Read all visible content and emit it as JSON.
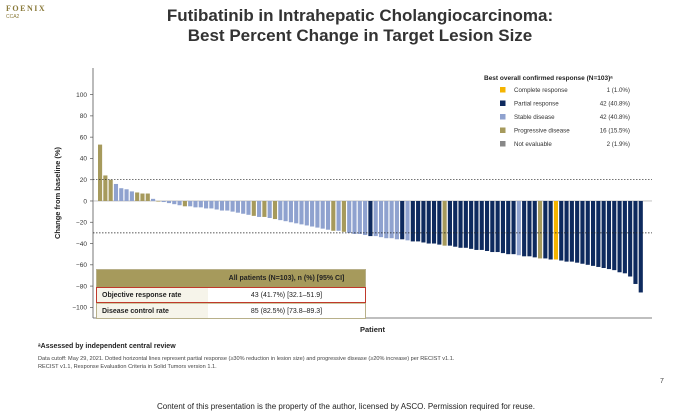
{
  "logo": {
    "line1": "FOENIX",
    "line2": "CCA2"
  },
  "title": {
    "line1": "Futibatinib in Intrahepatic Cholangiocarcinoma:",
    "line2": "Best Percent Change in Target Lesion Size"
  },
  "legend": {
    "title": "Best overall confirmed response (N=103)ᵃ",
    "items": [
      {
        "label": "Complete response",
        "value": "1 (1.0%)",
        "color": "#f5b400"
      },
      {
        "label": "Partial response",
        "value": "42 (40.8%)",
        "color": "#0e2a5e"
      },
      {
        "label": "Stable disease",
        "value": "42 (40.8%)",
        "color": "#8fa2cf"
      },
      {
        "label": "Progressive disease",
        "value": "16 (15.5%)",
        "color": "#a69a5c"
      },
      {
        "label": "Not evaluable",
        "value": "2 (1.9%)",
        "color": "#888888"
      }
    ]
  },
  "table": {
    "header": "All patients (N=103), n (%) [95% CI]",
    "rows": [
      {
        "label": "Objective response rate",
        "value": "43 (41.7%) [32.1–51.9]"
      },
      {
        "label": "Disease control rate",
        "value": "85 (82.5%) [73.8–89.3]"
      }
    ]
  },
  "chart_data": {
    "type": "bar",
    "xlabel": "Patient",
    "ylabel": "Change from baseline (%)",
    "ylim": [
      -110,
      125
    ],
    "yticks": [
      100,
      80,
      60,
      40,
      20,
      0,
      -20,
      -40,
      -60,
      -80,
      -100
    ],
    "ytick_labels": [
      "100",
      "80",
      "60",
      "40",
      "20",
      "0",
      "−20",
      "−40",
      "−60",
      "−80",
      "−100"
    ],
    "reference_lines": [
      20,
      -30
    ],
    "grid": false,
    "legend_position": "top-right",
    "colors": {
      "CR": "#f5b400",
      "PR": "#0e2a5e",
      "SD": "#8fa2cf",
      "PD": "#a69a5c",
      "NE": "#888888"
    },
    "values": [
      53,
      24,
      20,
      16,
      12,
      11,
      9,
      8,
      7,
      7,
      2,
      0,
      -1,
      -2,
      -3,
      -4,
      -5,
      -5,
      -6,
      -6,
      -7,
      -7,
      -8,
      -9,
      -9,
      -10,
      -11,
      -12,
      -13,
      -14,
      -15,
      -15,
      -16,
      -17,
      -18,
      -19,
      -20,
      -21,
      -22,
      -23,
      -24,
      -25,
      -26,
      -27,
      -28,
      -28,
      -29,
      -30,
      -31,
      -31,
      -32,
      -33,
      -33,
      -34,
      -35,
      -35,
      -36,
      -36,
      -37,
      -38,
      -38,
      -39,
      -40,
      -40,
      -41,
      -42,
      -42,
      -43,
      -44,
      -44,
      -45,
      -46,
      -46,
      -47,
      -48,
      -48,
      -49,
      -50,
      -50,
      -51,
      -52,
      -52,
      -53,
      -54,
      -54,
      -55,
      -55,
      -56,
      -57,
      -57,
      -58,
      -59,
      -60,
      -61,
      -62,
      -63,
      -64,
      -65,
      -67,
      -68,
      -71,
      -78,
      -86
    ],
    "categories": [
      "PD",
      "PD",
      "PD",
      "SD",
      "SD",
      "SD",
      "SD",
      "PD",
      "PD",
      "PD",
      "SD",
      "PD",
      "SD",
      "SD",
      "SD",
      "SD",
      "PD",
      "SD",
      "SD",
      "SD",
      "SD",
      "SD",
      "SD",
      "SD",
      "SD",
      "SD",
      "SD",
      "SD",
      "SD",
      "PD",
      "SD",
      "PD",
      "SD",
      "PD",
      "SD",
      "SD",
      "SD",
      "SD",
      "SD",
      "SD",
      "SD",
      "SD",
      "SD",
      "SD",
      "PD",
      "SD",
      "PD",
      "SD",
      "SD",
      "SD",
      "SD",
      "PR",
      "SD",
      "SD",
      "SD",
      "SD",
      "SD",
      "PR",
      "SD",
      "PR",
      "PR",
      "PR",
      "PR",
      "PR",
      "PR",
      "PD",
      "PR",
      "PR",
      "PR",
      "PR",
      "PR",
      "PR",
      "PR",
      "PR",
      "PR",
      "PR",
      "PR",
      "PR",
      "PR",
      "SD",
      "PR",
      "PR",
      "PR",
      "PD",
      "PR",
      "PR",
      "CR",
      "PR",
      "PR",
      "PR",
      "PR",
      "PR",
      "PR",
      "PR",
      "PR",
      "PR",
      "PR",
      "PR",
      "PR",
      "PR",
      "PR",
      "PR",
      "PR"
    ]
  },
  "footnotes": {
    "a": "ᵃAssessed by independent central review",
    "b": "Data cutoff: May 29, 2021. Dotted horizontal lines represent partial response (≥30% reduction in lesion size) and progressive disease (≥20% increase) per RECIST v1.1.",
    "c": "RECIST v1.1, Response Evaluation Criteria in Solid Tumors version 1.1."
  },
  "page_number": "7",
  "copyright": "Content of this presentation is the property of the author, licensed by ASCO. Permission required for reuse."
}
